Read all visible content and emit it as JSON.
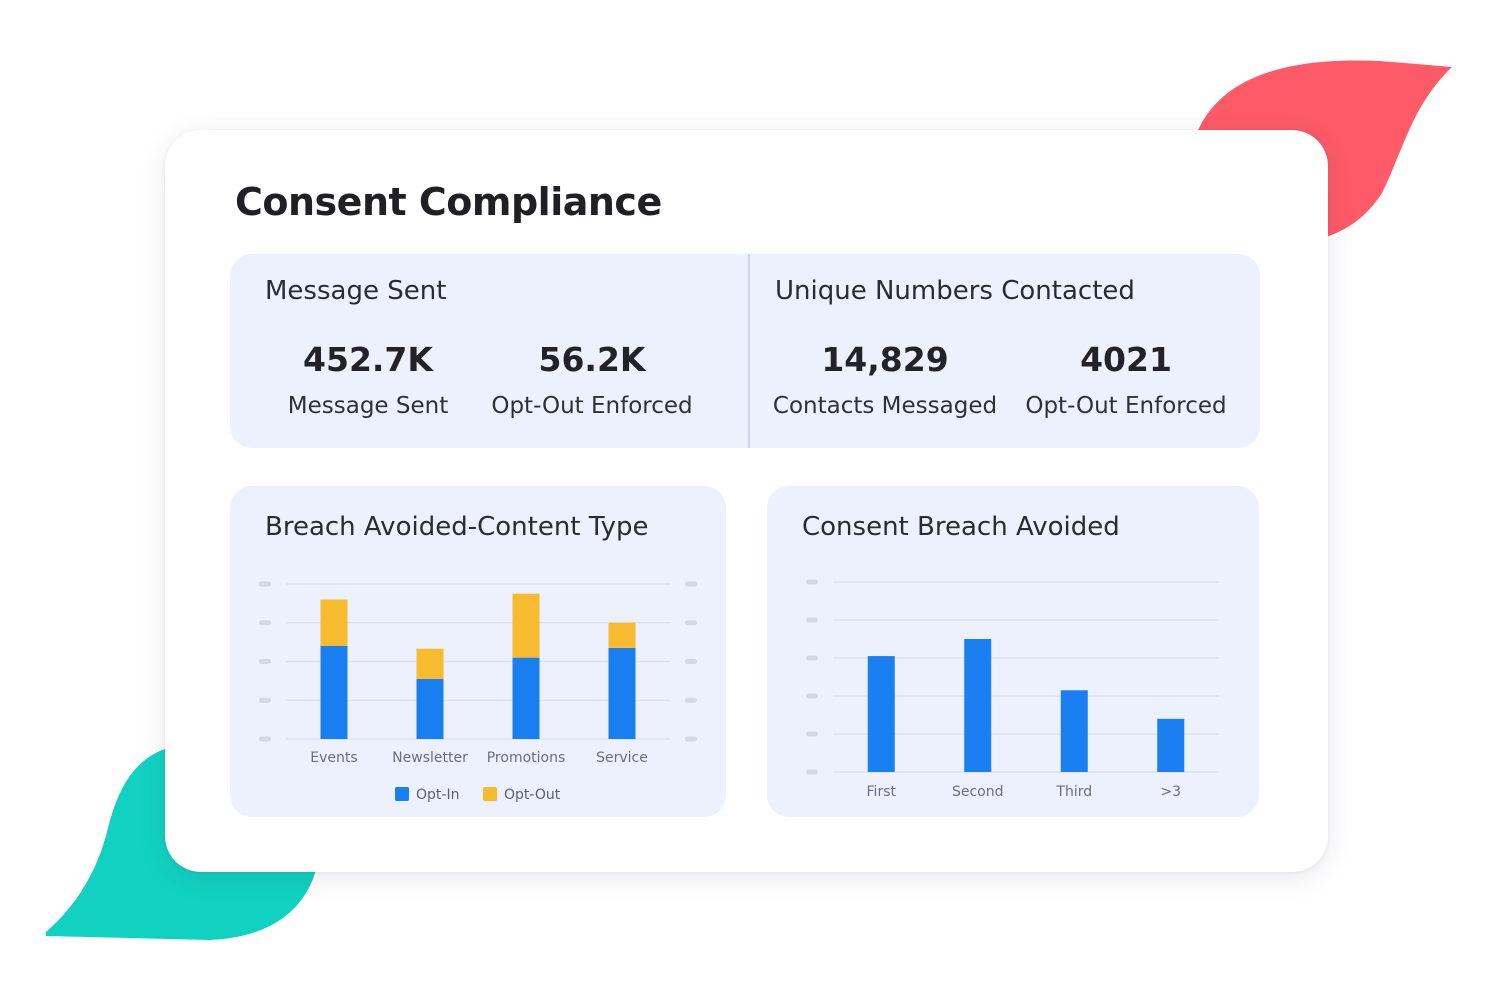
{
  "page": {
    "title": "Consent Compliance"
  },
  "colors": {
    "opt_in": "#1a7ff0",
    "opt_out": "#f6bb2e",
    "panel": "#edf1fe",
    "blob_red": "#fe5a67",
    "blob_teal": "#11d2c0"
  },
  "stats": [
    {
      "title": "Message Sent",
      "items": [
        {
          "value": "452.7K",
          "label": "Message Sent"
        },
        {
          "value": "56.2K",
          "label": "Opt-Out Enforced"
        }
      ]
    },
    {
      "title": "Unique Numbers Contacted",
      "items": [
        {
          "value": "14,829",
          "label": "Contacts Messaged"
        },
        {
          "value": "4021",
          "label": "Opt-Out Enforced"
        }
      ]
    }
  ],
  "charts": {
    "breach_content_type": {
      "title": "Breach Avoided-Content Type"
    },
    "consent_breach": {
      "title": "Consent Breach Avoided"
    }
  },
  "chart_data": [
    {
      "type": "bar",
      "stacked": true,
      "categories": [
        "Events",
        "Newsletter",
        "Promotions",
        "Service"
      ],
      "series": [
        {
          "name": "Opt-In",
          "values": [
            2.4,
            1.55,
            2.1,
            2.35
          ]
        },
        {
          "name": "Opt-Out",
          "values": [
            1.2,
            0.78,
            1.65,
            0.65
          ]
        }
      ],
      "ylim": [
        0,
        4
      ],
      "legend": "bottom-center",
      "grid": true
    },
    {
      "type": "bar",
      "categories": [
        "First",
        "Second",
        "Third",
        ">3"
      ],
      "values": [
        3.05,
        3.5,
        2.15,
        1.4
      ],
      "ylim": [
        0,
        5
      ],
      "grid": true
    }
  ]
}
